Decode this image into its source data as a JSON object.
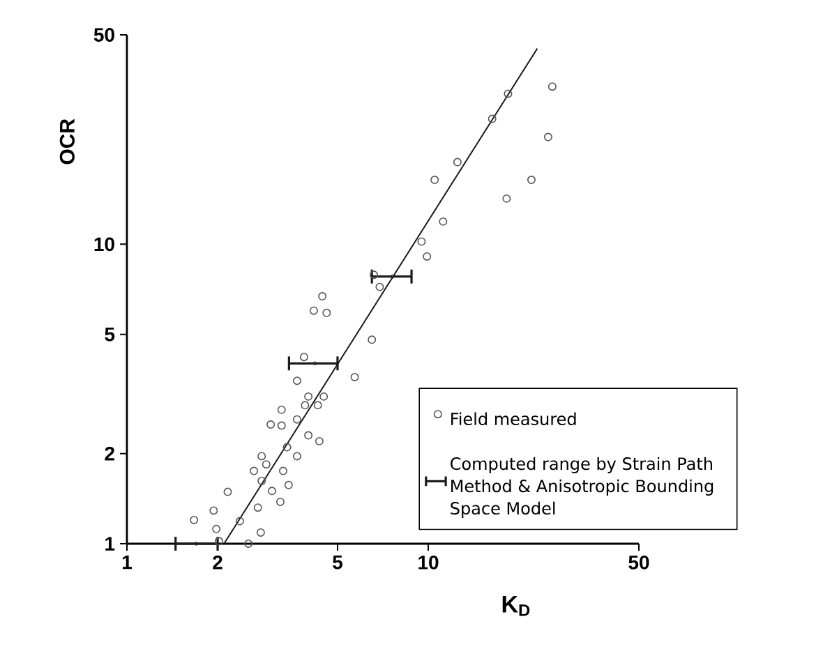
{
  "chart_data": {
    "type": "scatter",
    "xlabel": "K$_{D}$",
    "ylabel": "OCR",
    "log": "xy",
    "xlim": [
      1,
      50
    ],
    "ylim": [
      1,
      50
    ],
    "xticks": [
      1,
      2,
      5,
      10,
      50
    ],
    "yticks": [
      1,
      2,
      5,
      10,
      50
    ],
    "legend": "right",
    "marker": "circle",
    "series": [
      {
        "name": "Field measured",
        "color": "#555555",
        "x": [
          25.8,
          18.4,
          16.3,
          25.0,
          12.5,
          10.5,
          22.0,
          18.2,
          11.2,
          9.5,
          9.9,
          6.6,
          6.9,
          4.45,
          4.17,
          4.6,
          6.5,
          3.87,
          5.7,
          3.67,
          4.0,
          4.5,
          3.9,
          4.3,
          3.26,
          3.0,
          3.26,
          3.67,
          4.0,
          4.35,
          3.4,
          3.67,
          2.8,
          2.64,
          2.9,
          3.3,
          2.8,
          3.44,
          3.23,
          2.72,
          3.03,
          2.16,
          1.94,
          2.37,
          1.67,
          1.98,
          2.78,
          2.53,
          2.02
        ],
        "values": [
          33.6,
          31.8,
          26.2,
          22.8,
          18.8,
          16.4,
          16.4,
          14.2,
          11.9,
          10.2,
          9.1,
          7.9,
          7.2,
          6.7,
          6.0,
          5.9,
          4.8,
          4.2,
          3.6,
          3.5,
          3.1,
          3.1,
          2.9,
          2.9,
          2.8,
          2.5,
          2.48,
          2.6,
          2.3,
          2.2,
          2.1,
          1.96,
          1.96,
          1.75,
          1.84,
          1.75,
          1.62,
          1.57,
          1.38,
          1.32,
          1.5,
          1.49,
          1.29,
          1.19,
          1.2,
          1.12,
          1.09,
          1.0,
          1.02
        ]
      },
      {
        "name": "Computed range by Strain Path Method & Anisotropic Bounding Space Model",
        "color": "#1a1a1a",
        "x": [
          1.7,
          4.2,
          7.6
        ],
        "values": [
          1.0,
          4.0,
          7.8
        ],
        "xerrors": [
          [
            1.45,
            2.0
          ],
          [
            3.45,
            5.0
          ],
          [
            6.5,
            8.8
          ]
        ]
      },
      {
        "type": "line",
        "marker": "none",
        "color": "#1a1a1a",
        "x": [
          2.1,
          23
        ],
        "values": [
          1,
          45
        ]
      }
    ]
  }
}
